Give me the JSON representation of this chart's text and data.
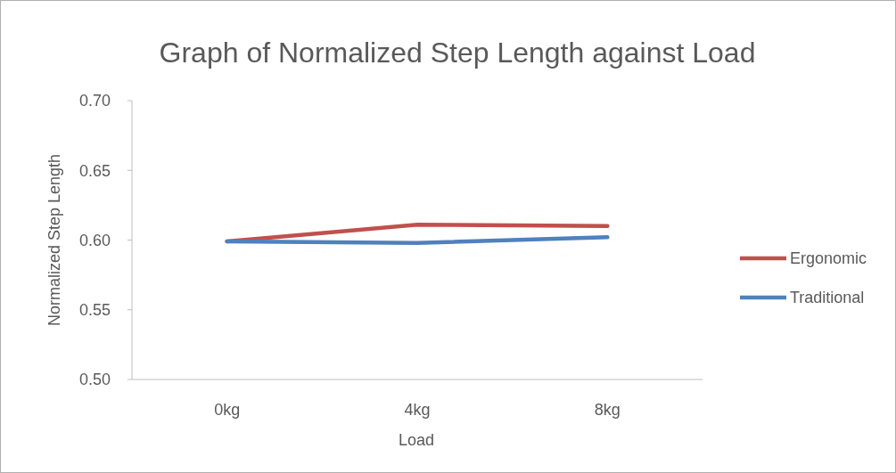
{
  "chart_data": {
    "type": "line",
    "title": "Graph of Normalized Step Length against Load",
    "xlabel": "Load",
    "ylabel": "Normalized Step Length",
    "categories": [
      "0kg",
      "4kg",
      "8kg"
    ],
    "series": [
      {
        "name": "Ergonomic",
        "color": "#c0504d",
        "values": [
          0.599,
          0.611,
          0.61
        ]
      },
      {
        "name": "Traditional",
        "color": "#4f81bd",
        "values": [
          0.599,
          0.598,
          0.602
        ]
      }
    ],
    "ylim": [
      0.5,
      0.7
    ],
    "yticks": [
      {
        "value": 0.5,
        "label": "0.50"
      },
      {
        "value": 0.55,
        "label": "0.55"
      },
      {
        "value": 0.6,
        "label": "0.60"
      },
      {
        "value": 0.65,
        "label": "0.65"
      },
      {
        "value": 0.7,
        "label": "0.70"
      }
    ],
    "grid": false,
    "legend": "right",
    "marker": "none",
    "line_style": "solid"
  }
}
